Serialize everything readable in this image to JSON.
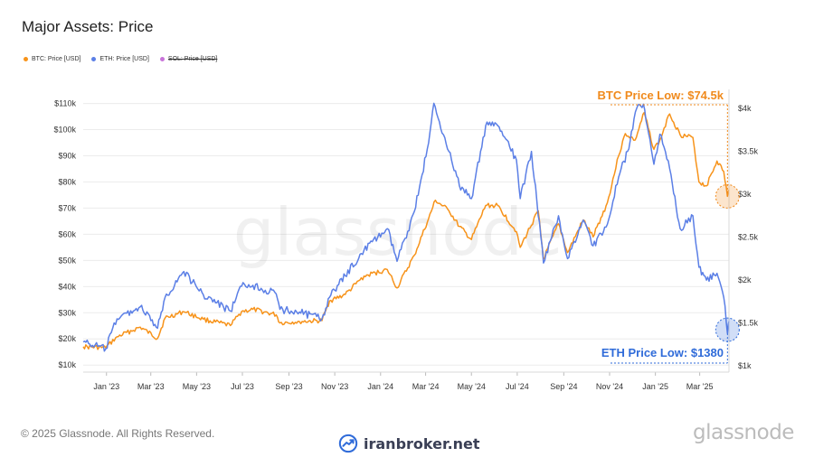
{
  "page": {
    "title": "Major Assets: Price",
    "watermark": "glassnode",
    "copyright": "© 2025 Glassnode. All Rights Reserved.",
    "brand": "glassnode",
    "broker_text": "iranbroker.net"
  },
  "legend": [
    {
      "label": "BTC: Price [USD]",
      "color": "#f7931a",
      "enabled": true
    },
    {
      "label": "ETH: Price [USD]",
      "color": "#5b7fe6",
      "enabled": true
    },
    {
      "label": "SOL: Price [USD]",
      "color": "#c874d9",
      "enabled": false
    }
  ],
  "annotations": {
    "btc_low": {
      "label": "BTC Price Low: $74.5k",
      "value": 74500,
      "date": "2025-04-07",
      "color": "#f08a1c"
    },
    "eth_low": {
      "label": "ETH Price Low: $1380",
      "value": 1380,
      "date": "2025-04-07",
      "color": "#2f6bd9"
    }
  },
  "chart_data": {
    "type": "line",
    "left_axis": {
      "ticks": [
        10000,
        20000,
        30000,
        40000,
        50000,
        60000,
        70000,
        80000,
        90000,
        100000,
        110000
      ],
      "tick_labels": [
        "$10k",
        "$20k",
        "$30k",
        "$40k",
        "$50k",
        "$60k",
        "$70k",
        "$80k",
        "$90k",
        "$100k",
        "$110k"
      ],
      "ylim": [
        8000,
        114000
      ]
    },
    "right_axis": {
      "ticks": [
        1000,
        1500,
        2000,
        2500,
        3000,
        3500,
        4000
      ],
      "tick_labels": [
        "$1k",
        "$1.5k",
        "$2k",
        "$2.5k",
        "$3k",
        "$3.5k",
        "$4k"
      ],
      "ylim": [
        950,
        4180
      ]
    },
    "x_axis": {
      "range": [
        "2022-12-01",
        "2025-04-09"
      ],
      "ticks": [
        "2023-01-01",
        "2023-03-01",
        "2023-05-01",
        "2023-07-01",
        "2023-09-01",
        "2023-11-01",
        "2024-01-01",
        "2024-03-01",
        "2024-05-01",
        "2024-07-01",
        "2024-09-01",
        "2024-11-01",
        "2025-01-01",
        "2025-03-01"
      ],
      "tick_labels": [
        "Jan '23",
        "Mar '23",
        "May '23",
        "Jul '23",
        "Sep '23",
        "Nov '23",
        "Jan '24",
        "Mar '24",
        "May '24",
        "Jul '24",
        "Sep '24",
        "Nov '24",
        "Jan '25",
        "Mar '25"
      ]
    },
    "grid": true,
    "series": [
      {
        "name": "BTC: Price [USD]",
        "axis": "left",
        "color": "#f7931a",
        "points": [
          [
            "2022-12-01",
            17000
          ],
          [
            "2022-12-31",
            16600
          ],
          [
            "2023-01-15",
            20800
          ],
          [
            "2023-02-15",
            24500
          ],
          [
            "2023-03-10",
            20200
          ],
          [
            "2023-03-20",
            28000
          ],
          [
            "2023-04-14",
            30400
          ],
          [
            "2023-05-10",
            27500
          ],
          [
            "2023-06-15",
            25100
          ],
          [
            "2023-06-30",
            30500
          ],
          [
            "2023-07-15",
            31300
          ],
          [
            "2023-08-15",
            29200
          ],
          [
            "2023-08-20",
            26100
          ],
          [
            "2023-09-15",
            26600
          ],
          [
            "2023-10-15",
            27000
          ],
          [
            "2023-10-25",
            34500
          ],
          [
            "2023-11-15",
            37000
          ],
          [
            "2023-12-10",
            44000
          ],
          [
            "2024-01-10",
            46500
          ],
          [
            "2024-01-23",
            39500
          ],
          [
            "2024-02-15",
            52000
          ],
          [
            "2024-03-05",
            66000
          ],
          [
            "2024-03-14",
            73000
          ],
          [
            "2024-04-01",
            69000
          ],
          [
            "2024-04-15",
            63000
          ],
          [
            "2024-05-01",
            58000
          ],
          [
            "2024-05-20",
            71000
          ],
          [
            "2024-06-05",
            71000
          ],
          [
            "2024-06-30",
            61000
          ],
          [
            "2024-07-05",
            55000
          ],
          [
            "2024-07-29",
            69000
          ],
          [
            "2024-08-05",
            50500
          ],
          [
            "2024-08-25",
            64000
          ],
          [
            "2024-09-06",
            53000
          ],
          [
            "2024-09-27",
            65500
          ],
          [
            "2024-10-10",
            59000
          ],
          [
            "2024-10-29",
            72000
          ],
          [
            "2024-11-13",
            90000
          ],
          [
            "2024-11-22",
            98500
          ],
          [
            "2024-12-05",
            96000
          ],
          [
            "2024-12-17",
            106500
          ],
          [
            "2024-12-30",
            92500
          ],
          [
            "2025-01-07",
            96000
          ],
          [
            "2025-01-20",
            106000
          ],
          [
            "2025-02-03",
            98000
          ],
          [
            "2025-02-20",
            97000
          ],
          [
            "2025-02-28",
            80000
          ],
          [
            "2025-03-10",
            78500
          ],
          [
            "2025-03-24",
            88000
          ],
          [
            "2025-04-02",
            84000
          ],
          [
            "2025-04-07",
            74500
          ],
          [
            "2025-04-09",
            77000
          ]
        ]
      },
      {
        "name": "ETH: Price [USD]",
        "axis": "right",
        "color": "#5b7fe6",
        "points": [
          [
            "2022-12-01",
            1280
          ],
          [
            "2022-12-31",
            1200
          ],
          [
            "2023-01-15",
            1550
          ],
          [
            "2023-02-15",
            1690
          ],
          [
            "2023-03-10",
            1440
          ],
          [
            "2023-03-20",
            1800
          ],
          [
            "2023-04-14",
            2100
          ],
          [
            "2023-05-10",
            1830
          ],
          [
            "2023-06-15",
            1640
          ],
          [
            "2023-06-30",
            1930
          ],
          [
            "2023-07-15",
            1940
          ],
          [
            "2023-08-15",
            1840
          ],
          [
            "2023-08-20",
            1660
          ],
          [
            "2023-09-15",
            1630
          ],
          [
            "2023-10-15",
            1550
          ],
          [
            "2023-10-25",
            1800
          ],
          [
            "2023-11-15",
            2050
          ],
          [
            "2023-12-10",
            2350
          ],
          [
            "2024-01-10",
            2600
          ],
          [
            "2024-01-23",
            2220
          ],
          [
            "2024-02-15",
            2800
          ],
          [
            "2024-03-05",
            3600
          ],
          [
            "2024-03-12",
            4060
          ],
          [
            "2024-04-01",
            3500
          ],
          [
            "2024-04-15",
            3100
          ],
          [
            "2024-05-01",
            2950
          ],
          [
            "2024-05-20",
            3800
          ],
          [
            "2024-06-05",
            3800
          ],
          [
            "2024-06-30",
            3400
          ],
          [
            "2024-07-05",
            2950
          ],
          [
            "2024-07-20",
            3500
          ],
          [
            "2024-08-05",
            2200
          ],
          [
            "2024-08-25",
            2750
          ],
          [
            "2024-09-06",
            2250
          ],
          [
            "2024-09-27",
            2700
          ],
          [
            "2024-10-10",
            2400
          ],
          [
            "2024-10-29",
            2650
          ],
          [
            "2024-11-13",
            3200
          ],
          [
            "2024-11-25",
            3500
          ],
          [
            "2024-12-07",
            4000
          ],
          [
            "2024-12-16",
            4050
          ],
          [
            "2024-12-30",
            3350
          ],
          [
            "2025-01-07",
            3700
          ],
          [
            "2025-01-20",
            3300
          ],
          [
            "2025-02-03",
            2600
          ],
          [
            "2025-02-20",
            2750
          ],
          [
            "2025-02-28",
            2150
          ],
          [
            "2025-03-10",
            2000
          ],
          [
            "2025-03-24",
            2080
          ],
          [
            "2025-04-02",
            1800
          ],
          [
            "2025-04-07",
            1380
          ],
          [
            "2025-04-09",
            1520
          ]
        ]
      }
    ]
  }
}
